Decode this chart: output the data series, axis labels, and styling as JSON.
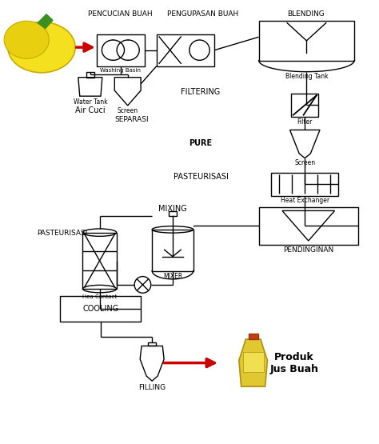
{
  "bg_color": "#ffffff",
  "fig_width": 4.74,
  "fig_height": 5.55,
  "dpi": 100,
  "labels": {
    "pencucian": "PENCUCIAN BUAH",
    "pengupasan": "PENGUPASAN BUAH",
    "blending": "BLENDING",
    "filtering": "FILTERING",
    "pure": "PURE",
    "pasteurisasi1": "PASTEURISASI",
    "pasteurisasi2": "PASTEURISASI",
    "mixing": "MIXING",
    "pendinginan": "PENDINGINAN",
    "cooling": "COOLING",
    "filling": "FILLING",
    "air_cuci": "Air Cuci",
    "separasi": "SEPARASI",
    "washing_basin": "Washing Basin",
    "screen1": "Screen",
    "water_tank": "Water Tank",
    "blending_tank": "Blending Tank",
    "filter_lbl": "Filter",
    "screen2": "Screen",
    "heat_exchanger": "Heat Exchanger",
    "hea_contact": "Hea Contact",
    "mixer": "MIXER",
    "produk": "Produk\nJus Buah"
  },
  "lc": "#000000",
  "red": "#cc0000",
  "lw": 1.0
}
